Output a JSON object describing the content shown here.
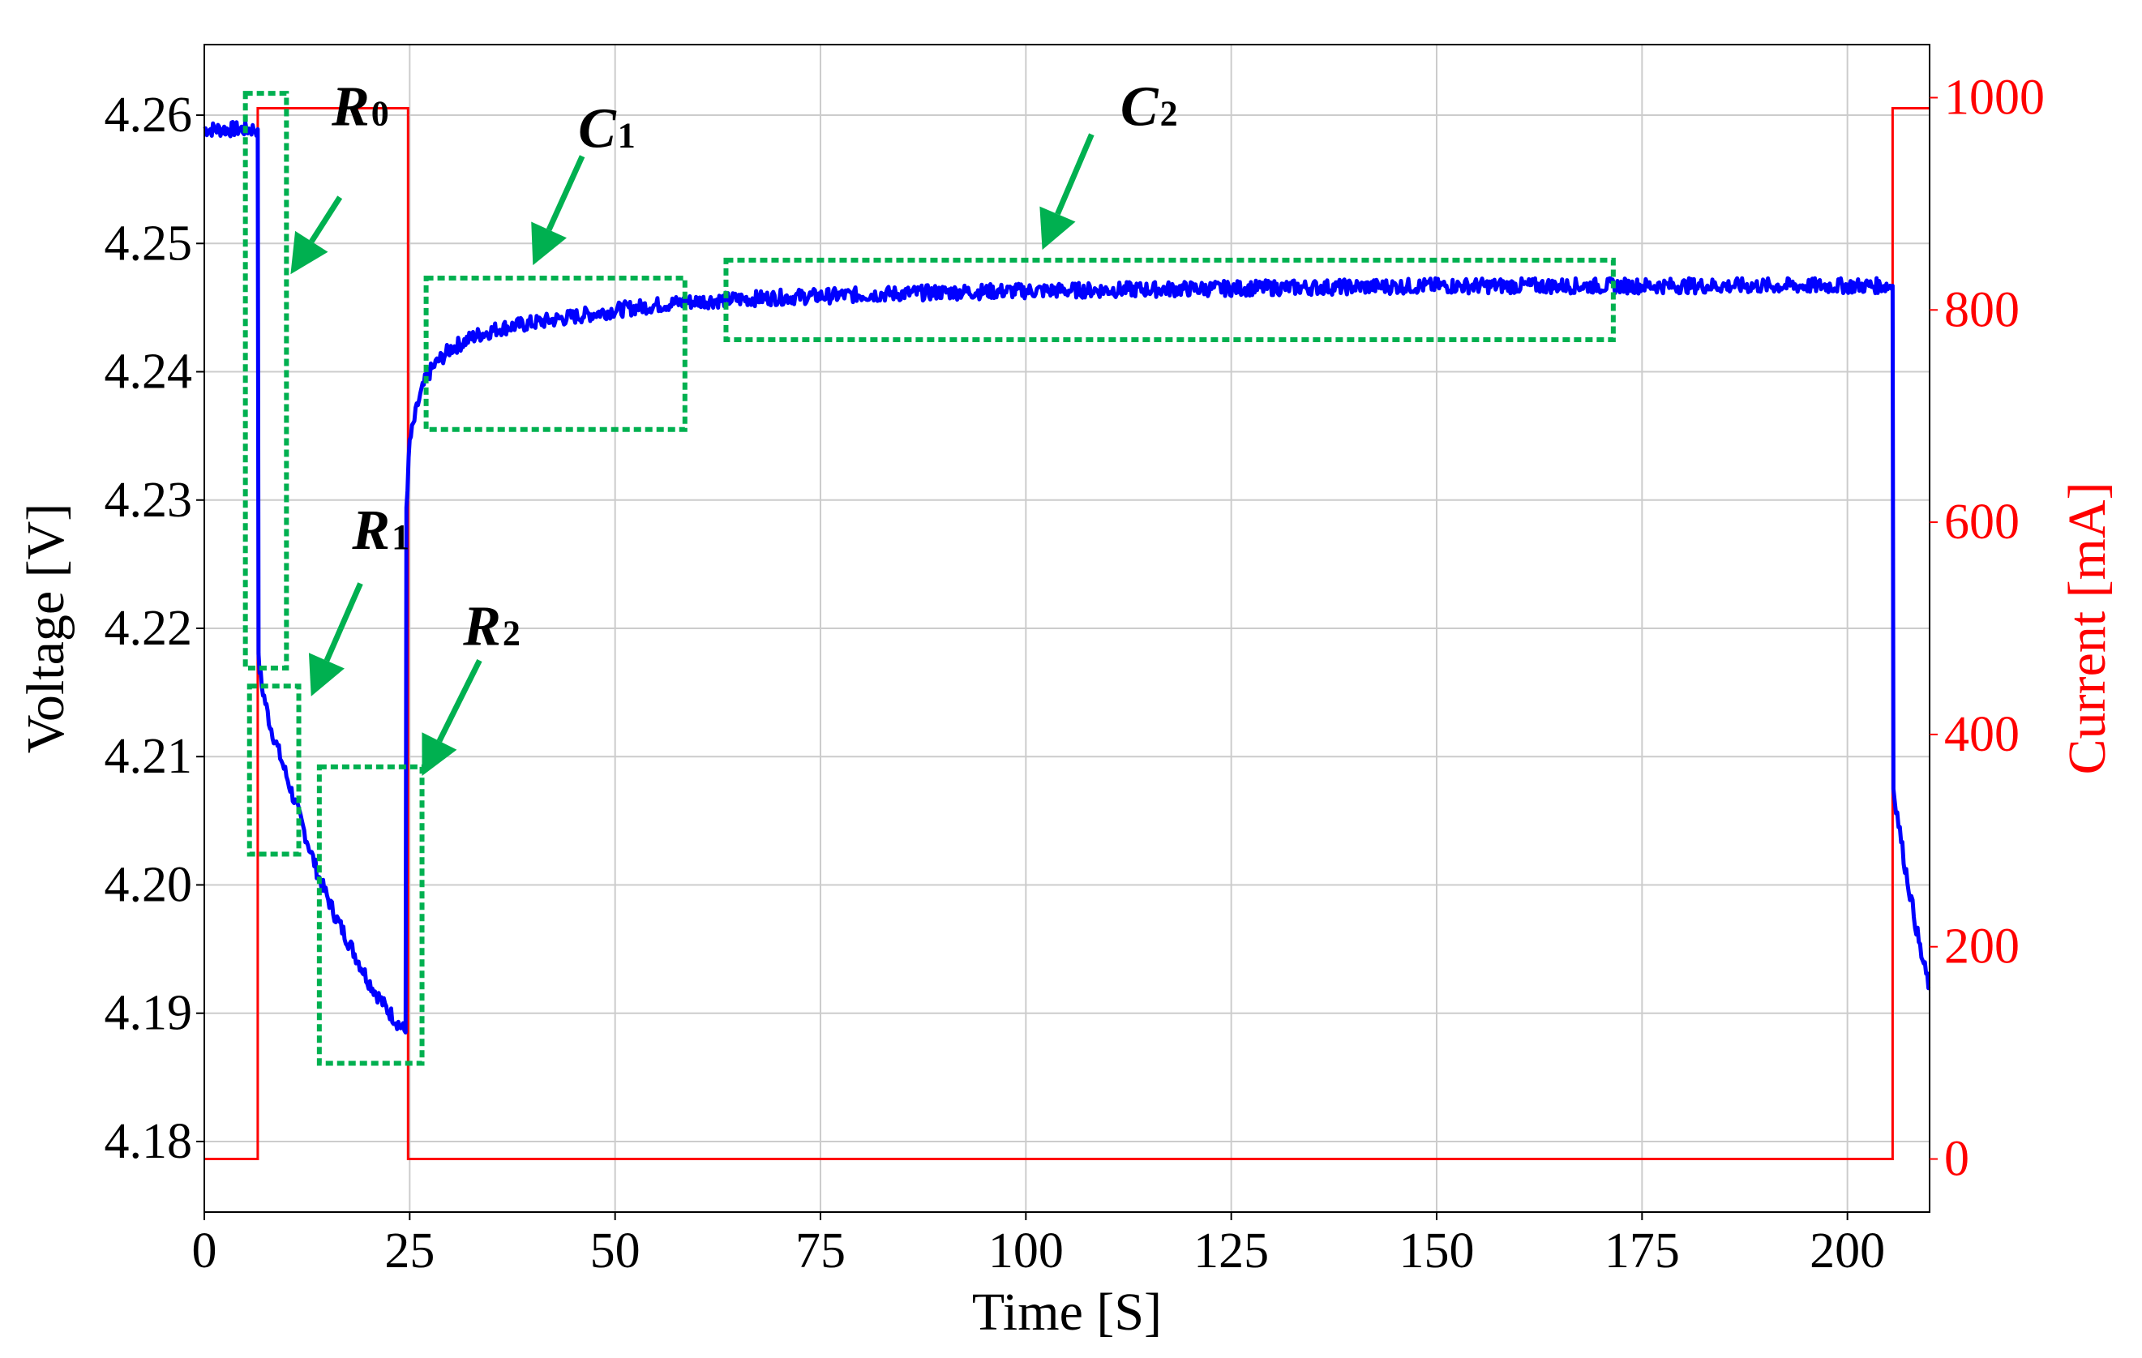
{
  "chart_data": {
    "type": "line",
    "xlabel": "Time [S]",
    "ylabel_left": "Voltage [V]",
    "ylabel_right": "Current [mA]",
    "xlim": [
      0,
      210
    ],
    "ylim_left": [
      4.1745,
      4.2655
    ],
    "ylim_right": [
      -50,
      1050
    ],
    "x_ticks": [
      0,
      25,
      50,
      75,
      100,
      125,
      150,
      175,
      200
    ],
    "y_left_ticks": [
      "4.18",
      "4.19",
      "4.20",
      "4.21",
      "4.22",
      "4.23",
      "4.24",
      "4.25",
      "4.26"
    ],
    "y_right_ticks": [
      "0",
      "200",
      "400",
      "600",
      "800",
      "1000"
    ],
    "grid": true,
    "colors": {
      "voltage": "#0000ff",
      "current": "#ff0000",
      "annotation": "#00b050",
      "arrow": "#00b050"
    },
    "series": [
      {
        "axis": "left",
        "color": "#0000ff",
        "points": [
          [
            0,
            4.2589
          ],
          [
            6.5,
            4.2589
          ],
          [
            6.6,
            4.2175
          ],
          [
            7,
            4.2155
          ],
          [
            8,
            4.2125
          ],
          [
            10,
            4.2085
          ],
          [
            12,
            4.2045
          ],
          [
            14,
            4.2005
          ],
          [
            16,
            4.1975
          ],
          [
            18,
            4.195
          ],
          [
            20,
            4.1925
          ],
          [
            22,
            4.1905
          ],
          [
            24.5,
            4.1885
          ],
          [
            24.6,
            4.2295
          ],
          [
            25,
            4.2345
          ],
          [
            26,
            4.2375
          ],
          [
            27,
            4.2395
          ],
          [
            28,
            4.2405
          ],
          [
            30,
            4.2418
          ],
          [
            33,
            4.2428
          ],
          [
            36,
            4.2434
          ],
          [
            40,
            4.2438
          ],
          [
            45,
            4.2443
          ],
          [
            50,
            4.2448
          ],
          [
            55,
            4.2452
          ],
          [
            60,
            4.2455
          ],
          [
            70,
            4.2458
          ],
          [
            80,
            4.246
          ],
          [
            90,
            4.2462
          ],
          [
            100,
            4.2463
          ],
          [
            125,
            4.2465
          ],
          [
            150,
            4.2467
          ],
          [
            175,
            4.2467
          ],
          [
            205.5,
            4.2467
          ],
          [
            205.6,
            4.2075
          ],
          [
            207,
            4.2015
          ],
          [
            209,
            4.1945
          ],
          [
            210,
            4.192
          ]
        ]
      },
      {
        "axis": "right",
        "color": "#ff0000",
        "points": [
          [
            0,
            0
          ],
          [
            6.5,
            0
          ],
          [
            6.5,
            990
          ],
          [
            24.8,
            990
          ],
          [
            24.8,
            0
          ],
          [
            205.5,
            0
          ],
          [
            205.5,
            990
          ],
          [
            210,
            990
          ]
        ]
      }
    ],
    "annotations": [
      {
        "label": "R",
        "sub": "0"
      },
      {
        "label": "R",
        "sub": "1"
      },
      {
        "label": "R",
        "sub": "2"
      },
      {
        "label": "C",
        "sub": "1"
      },
      {
        "label": "C",
        "sub": "2"
      }
    ]
  }
}
